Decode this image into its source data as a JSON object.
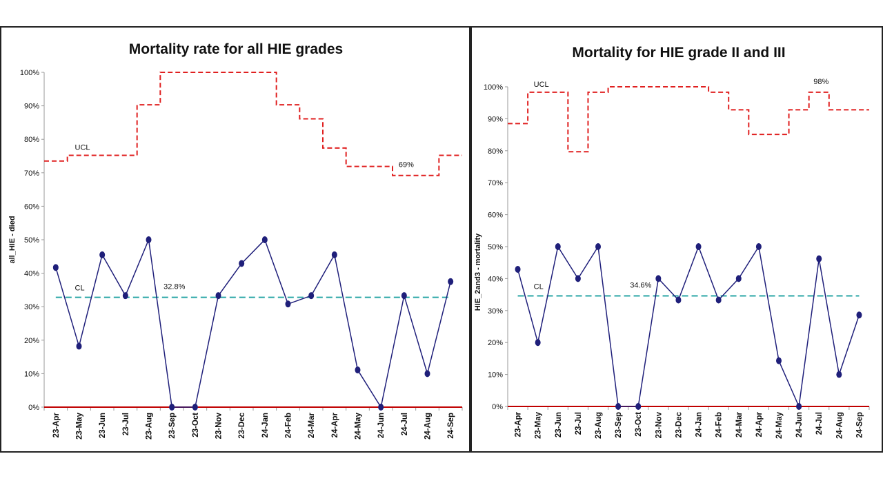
{
  "chart_data": [
    {
      "type": "line",
      "title": "Mortality rate for all HIE grades",
      "xlabel": "",
      "ylabel": "all_HIE - died",
      "ylim": [
        0,
        100
      ],
      "y_ticks": [
        "0%",
        "10%",
        "20%",
        "30%",
        "40%",
        "50%",
        "60%",
        "70%",
        "80%",
        "90%",
        "100%"
      ],
      "categories": [
        "23-Apr",
        "23-May",
        "23-Jun",
        "23-Jul",
        "23-Aug",
        "23-Sep",
        "23-Oct",
        "23-Nov",
        "23-Dec",
        "24-Jan",
        "24-Feb",
        "24-Mar",
        "24-Apr",
        "24-May",
        "24-Jun",
        "24-Jul",
        "24-Aug",
        "24-Sep"
      ],
      "grid": false,
      "series": [
        {
          "name": "all_HIE - died",
          "values": [
            41.7,
            18.2,
            45.5,
            33.3,
            50,
            0,
            0,
            33.3,
            42.9,
            50,
            30.8,
            33.3,
            45.5,
            11.1,
            0,
            33.3,
            10,
            37.5
          ]
        },
        {
          "name": "UCL",
          "values": [
            73.5,
            75.2,
            75.2,
            75.2,
            90.3,
            100,
            100,
            100,
            100,
            100,
            90.3,
            86.1,
            77.4,
            71.9,
            71.9,
            69.2,
            69.2,
            75.2
          ]
        },
        {
          "name": "CL",
          "values": [
            32.8,
            32.8,
            32.8,
            32.8,
            32.8,
            32.8,
            32.8,
            32.8,
            32.8,
            32.8,
            32.8,
            32.8,
            32.8,
            32.8,
            32.8,
            32.8,
            32.8,
            32.8
          ]
        },
        {
          "name": "LCL",
          "values": [
            0,
            0,
            0,
            0,
            0,
            0,
            0,
            0,
            0,
            0,
            0,
            0,
            0,
            0,
            0,
            0,
            0,
            0
          ]
        }
      ],
      "annotations": {
        "ucl_label": "UCL",
        "ucl_value": "69%",
        "ucl_value_index": 15,
        "cl_label": "CL",
        "cl_value": "32.8%"
      },
      "colors": {
        "data": "#1f1f7a",
        "ucl": "#e02020",
        "cl": "#2aa6a6",
        "lcl": "#c00000"
      }
    },
    {
      "type": "line",
      "title": "Mortality for HIE grade II and III",
      "xlabel": "",
      "ylabel": "HIE_2and3 - mortality",
      "ylim": [
        0,
        100
      ],
      "y_ticks": [
        "0%",
        "10%",
        "20%",
        "30%",
        "40%",
        "50%",
        "60%",
        "70%",
        "80%",
        "90%",
        "100%"
      ],
      "categories": [
        "23-Apr",
        "23-May",
        "23-Jun",
        "23-Jul",
        "23-Aug",
        "23-Sep",
        "23-Oct",
        "23-Nov",
        "23-Dec",
        "24-Jan",
        "24-Feb",
        "24-Mar",
        "24-Apr",
        "24-May",
        "24-Jun",
        "24-Jul",
        "24-Aug",
        "24-Sep"
      ],
      "grid": false,
      "series": [
        {
          "name": "HIE_2and3 - mortality",
          "values": [
            42.9,
            20,
            50,
            40,
            50,
            0,
            0,
            40,
            33.3,
            50,
            33.3,
            40,
            50,
            14.3,
            0,
            46.2,
            10,
            28.6
          ]
        },
        {
          "name": "UCL",
          "values": [
            88.5,
            98.3,
            98.3,
            79.7,
            98.3,
            100,
            100,
            100,
            100,
            100,
            98.3,
            92.8,
            85.1,
            85.1,
            92.8,
            98.3,
            92.8,
            92.8
          ]
        },
        {
          "name": "CL",
          "values": [
            34.6,
            34.6,
            34.6,
            34.6,
            34.6,
            34.6,
            34.6,
            34.6,
            34.6,
            34.6,
            34.6,
            34.6,
            34.6,
            34.6,
            34.6,
            34.6,
            34.6,
            34.6
          ]
        },
        {
          "name": "LCL",
          "values": [
            0,
            0,
            0,
            0,
            0,
            0,
            0,
            0,
            0,
            0,
            0,
            0,
            0,
            0,
            0,
            0,
            0,
            0
          ]
        }
      ],
      "annotations": {
        "ucl_label": "UCL",
        "ucl_value": "98%",
        "ucl_value_index": 15,
        "cl_label": "CL",
        "cl_value": "34.6%"
      },
      "colors": {
        "data": "#1f1f7a",
        "ucl": "#e02020",
        "cl": "#2aa6a6",
        "lcl": "#c00000"
      }
    }
  ]
}
